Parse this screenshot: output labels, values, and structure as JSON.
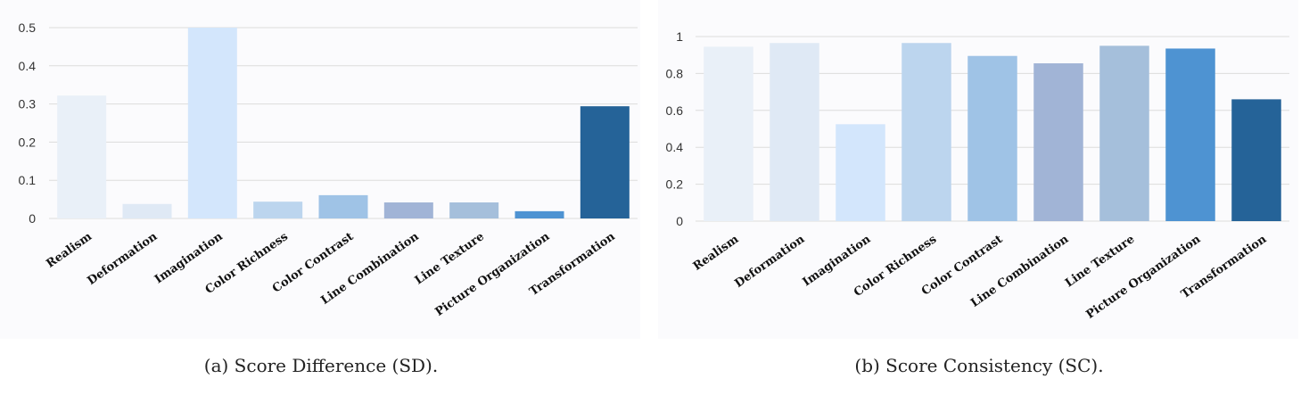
{
  "chart_data": [
    {
      "type": "bar",
      "caption": "(a) Score Difference (SD).",
      "categories": [
        "Realism",
        "Deformation",
        "Imagination",
        "Color Richness",
        "Color Contrast",
        "Line Combination",
        "Line Texture",
        "Picture Organization",
        "Transformation"
      ],
      "values": [
        0.322,
        0.038,
        0.5,
        0.044,
        0.061,
        0.042,
        0.042,
        0.019,
        0.294
      ],
      "ylim": [
        0,
        0.5
      ],
      "yticks": [
        "0",
        "0.1",
        "0.2",
        "0.3",
        "0.4",
        "0.5"
      ],
      "ytick_values": [
        0,
        0.1,
        0.2,
        0.3,
        0.4,
        0.5
      ],
      "grid": true,
      "colors": [
        "#e9f0f8",
        "#dfe9f5",
        "#d3e6fc",
        "#bcd5ee",
        "#9fc3e6",
        "#a1b4d6",
        "#a5bfdb",
        "#4e93d2",
        "#256398"
      ]
    },
    {
      "type": "bar",
      "caption": "(b) Score Consistency (SC).",
      "categories": [
        "Realism",
        "Deformation",
        "Imagination",
        "Color Richness",
        "Color Contrast",
        "Line Combination",
        "Line Texture",
        "Picture Organization",
        "Transformation"
      ],
      "values": [
        0.945,
        0.965,
        0.525,
        0.965,
        0.895,
        0.855,
        0.95,
        0.935,
        0.66
      ],
      "ylim": [
        0,
        1
      ],
      "yticks": [
        "0",
        "0.2",
        "0.4",
        "0.6",
        "0.8",
        "1"
      ],
      "ytick_values": [
        0,
        0.2,
        0.4,
        0.6,
        0.8,
        1
      ],
      "grid": true,
      "colors": [
        "#e9f0f8",
        "#dfe9f5",
        "#d3e6fc",
        "#bcd5ee",
        "#9fc3e6",
        "#a1b4d6",
        "#a5bfdb",
        "#4e93d2",
        "#256398"
      ]
    }
  ]
}
